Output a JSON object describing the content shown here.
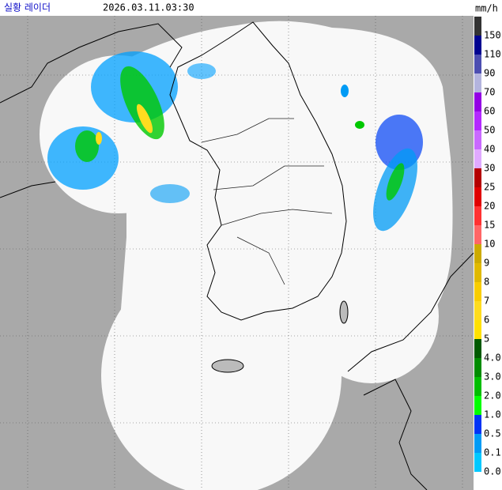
{
  "header": {
    "title": "실황 레이더",
    "time": "2026.03.11.03:30",
    "unit": "mm/h"
  },
  "legend": {
    "items": [
      {
        "label": "150",
        "color": "#333333"
      },
      {
        "label": "110",
        "color": "#000390"
      },
      {
        "label": "90",
        "color": "#4c4eb1"
      },
      {
        "label": "70",
        "color": "#b3b4de"
      },
      {
        "label": "60",
        "color": "#9300e4"
      },
      {
        "label": "50",
        "color": "#b329ff"
      },
      {
        "label": "40",
        "color": "#c969ff"
      },
      {
        "label": "30",
        "color": "#e0a9ff"
      },
      {
        "label": "25",
        "color": "#b40000"
      },
      {
        "label": "20",
        "color": "#e00000"
      },
      {
        "label": "15",
        "color": "#ff3232"
      },
      {
        "label": "10",
        "color": "#ff6666"
      },
      {
        "label": "9",
        "color": "#ccaa00"
      },
      {
        "label": "8",
        "color": "#e0b900"
      },
      {
        "label": "7",
        "color": "#f9cd00"
      },
      {
        "label": "6",
        "color": "#ffdc1f"
      },
      {
        "label": "5",
        "color": "#ffe100"
      },
      {
        "label": "4.0",
        "color": "#005a00"
      },
      {
        "label": "3.0",
        "color": "#008c00"
      },
      {
        "label": "2.0",
        "color": "#00be00"
      },
      {
        "label": "1.0",
        "color": "#00ff00"
      },
      {
        "label": "0.5",
        "color": "#0033f5"
      },
      {
        "label": "0.1",
        "color": "#009bf5"
      },
      {
        "label": "0.0",
        "color": "#00c8ff"
      }
    ]
  }
}
